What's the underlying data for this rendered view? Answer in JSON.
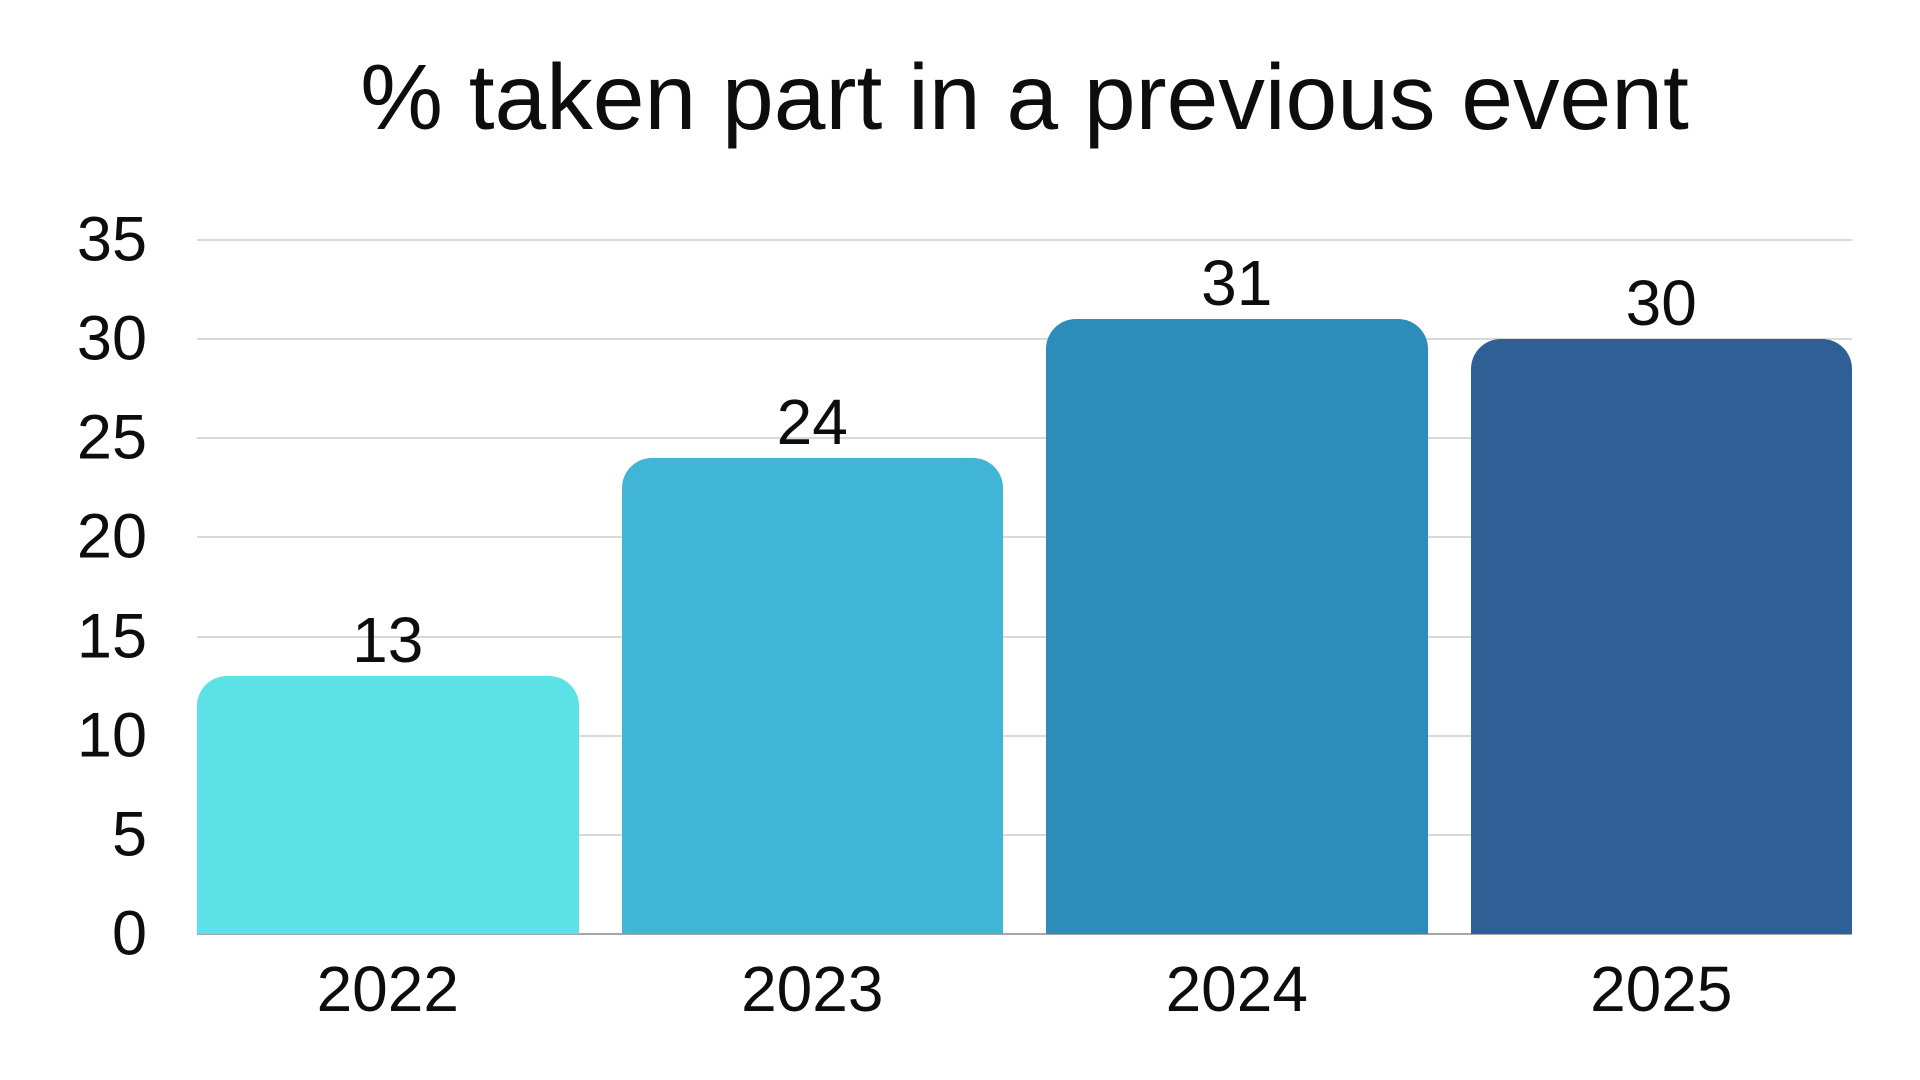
{
  "chart_data": {
    "type": "bar",
    "title": "% taken part in a previous event",
    "categories": [
      "2022",
      "2023",
      "2024",
      "2025"
    ],
    "values": [
      13,
      24,
      31,
      30
    ],
    "data_labels": [
      "13",
      "24",
      "31",
      "30"
    ],
    "bar_colors": [
      "#5CE1E6",
      "#40B5D6",
      "#2C8CBA",
      "#2E5F95"
    ],
    "xlabel": "",
    "ylabel": "",
    "ylim": [
      0,
      35
    ],
    "yticks": [
      0,
      5,
      10,
      15,
      20,
      25,
      30,
      35
    ],
    "grid": true,
    "legend_position": "none"
  },
  "style": {
    "background": "#ffffff",
    "text_color": "#0d0d0d",
    "gridline_color": "#d9d9d9",
    "baseline_color": "#a6a6a6"
  }
}
